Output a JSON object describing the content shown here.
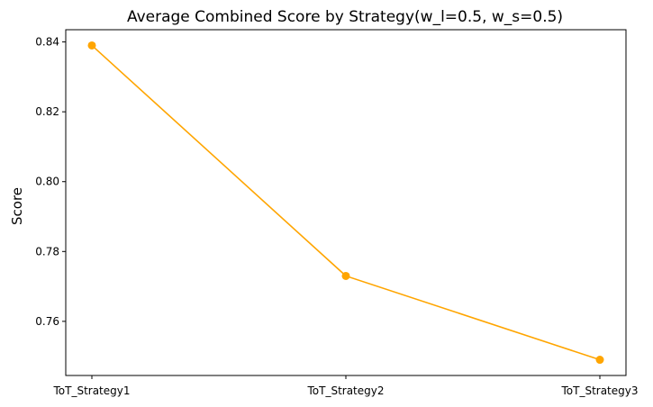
{
  "chart_data": {
    "type": "line",
    "title": "Average Combined Score by Strategy(w_l=0.5, w_s=0.5)",
    "xlabel": "",
    "ylabel": "Score",
    "categories": [
      "ToT_Strategy1",
      "ToT_Strategy2",
      "ToT_Strategy3"
    ],
    "series": [
      {
        "values": [
          0.839,
          0.773,
          0.749
        ],
        "color": "#FFA500",
        "marker": "circle"
      }
    ],
    "yticks": [
      0.76,
      0.78,
      0.8,
      0.82,
      0.84
    ],
    "ytick_labels": [
      "0.76",
      "0.78",
      "0.80",
      "0.82",
      "0.84"
    ],
    "ylim": [
      0.7445,
      0.8435
    ],
    "grid": false,
    "legend": "none"
  }
}
